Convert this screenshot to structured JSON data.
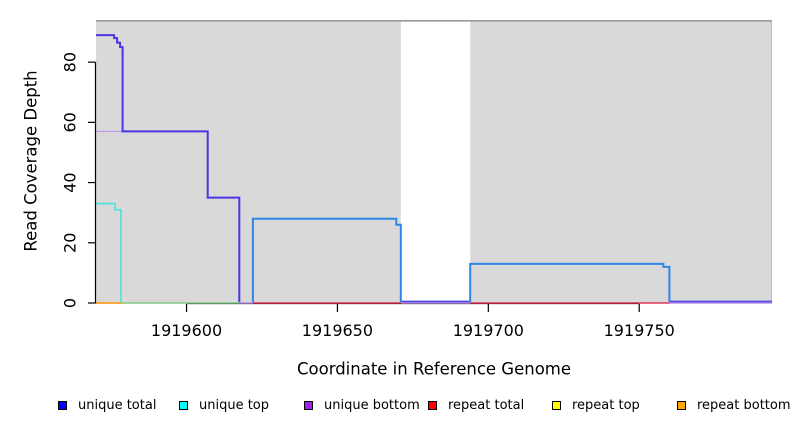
{
  "chart_data": {
    "type": "line",
    "title": "",
    "xlabel": "Coordinate in Reference Genome",
    "ylabel": "Read Coverage Depth",
    "xlim": [
      1919570,
      1919794
    ],
    "ylim": [
      0,
      94
    ],
    "x_ticks": [
      1919600,
      1919650,
      1919700,
      1919750
    ],
    "y_ticks": [
      0,
      20,
      40,
      60,
      80
    ],
    "grid": false,
    "legend_position": "bottom",
    "panel": {
      "fill": "#d9d9d9",
      "top_border_color": "#999999",
      "right_border_color": "#bdbdbd",
      "shaded_x_regions": [
        [
          1919570,
          1919671
        ],
        [
          1919694,
          1919794
        ]
      ],
      "white_gap_x_region": [
        1919671,
        1919694
      ]
    },
    "axis_color": "#000000",
    "series": [
      {
        "name": "zero-overlap-green",
        "color": "#82c982",
        "width": 1.6,
        "points": [
          [
            1919578.8,
            0
          ],
          [
            1919617.5,
            0
          ]
        ]
      },
      {
        "name": "unique-bottom-zero-a",
        "color": "#bb8fe8",
        "width": 1.5,
        "points": [
          [
            1919617.5,
            0
          ],
          [
            1919622,
            0
          ]
        ]
      },
      {
        "name": "unique-bottom-zero-gap",
        "color": "#bb8fe8",
        "width": 1.5,
        "points": [
          [
            1919671,
            0
          ],
          [
            1919694,
            0
          ]
        ]
      },
      {
        "name": "unique-bottom-zero-tail",
        "color": "#bb8fe8",
        "width": 1.5,
        "points": [
          [
            1919760,
            0
          ],
          [
            1919794,
            0
          ]
        ]
      },
      {
        "name": "repeat-bottom-zero",
        "color": "#ff9e1e",
        "width": 1.8,
        "points": [
          [
            1919570,
            0
          ],
          [
            1919578.8,
            0
          ]
        ]
      },
      {
        "name": "repeat-total-zero-a",
        "color": "#dc3355",
        "width": 1.6,
        "points": [
          [
            1919622,
            0
          ],
          [
            1919671,
            0
          ]
        ]
      },
      {
        "name": "repeat-total-zero-b",
        "color": "#dc3355",
        "width": 1.6,
        "points": [
          [
            1919694,
            0
          ],
          [
            1919760,
            0
          ]
        ]
      },
      {
        "name": "unique-bottom-57",
        "color": "#c39ae9",
        "width": 1.4,
        "points": [
          [
            1919570,
            57
          ],
          [
            1919578.8,
            57
          ]
        ]
      },
      {
        "name": "unique-top-steps",
        "color": "#4ce0e0",
        "width": 1.6,
        "points": [
          [
            1919570,
            33
          ],
          [
            1919576.3,
            33
          ],
          [
            1919576.3,
            31
          ],
          [
            1919578.3,
            31
          ],
          [
            1919578.3,
            0
          ]
        ]
      },
      {
        "name": "unique-total-left-block",
        "color": "#4a35e6",
        "width": 2,
        "points": [
          [
            1919570,
            89
          ],
          [
            1919576,
            89
          ],
          [
            1919576,
            88
          ],
          [
            1919577,
            88
          ],
          [
            1919577,
            86.5
          ],
          [
            1919578,
            86.5
          ],
          [
            1919578,
            85
          ],
          [
            1919578.8,
            85
          ],
          [
            1919578.8,
            57
          ],
          [
            1919607,
            57
          ],
          [
            1919607,
            35
          ],
          [
            1919617.5,
            35
          ],
          [
            1919617.5,
            0.3
          ]
        ]
      },
      {
        "name": "unique-total-zero-gap",
        "color": "#5247e0",
        "width": 1.8,
        "points": [
          [
            1919671,
            0.5
          ],
          [
            1919694,
            0.5
          ]
        ]
      },
      {
        "name": "unique-total-zero-tail",
        "color": "#5247e0",
        "width": 1.8,
        "points": [
          [
            1919760,
            0.5
          ],
          [
            1919794,
            0.5
          ]
        ]
      },
      {
        "name": "unique-total-mid-block",
        "color": "#2e86e8",
        "width": 2,
        "points": [
          [
            1919622,
            0.3
          ],
          [
            1919622,
            28
          ],
          [
            1919669.5,
            28
          ],
          [
            1919669.5,
            26
          ],
          [
            1919671,
            26
          ],
          [
            1919671,
            0.3
          ]
        ]
      },
      {
        "name": "unique-total-right-block",
        "color": "#2e86e8",
        "width": 2,
        "points": [
          [
            1919694,
            0.3
          ],
          [
            1919694,
            13
          ],
          [
            1919758,
            13
          ],
          [
            1919758,
            12
          ],
          [
            1919760,
            12
          ],
          [
            1919760,
            0.5
          ]
        ]
      }
    ]
  },
  "legend": {
    "items": [
      {
        "label": "unique total",
        "color": "#0000ff"
      },
      {
        "label": "unique top",
        "color": "#00ffff"
      },
      {
        "label": "unique bottom",
        "color": "#a020f0"
      },
      {
        "label": "repeat total",
        "color": "#ff0000"
      },
      {
        "label": "repeat top",
        "color": "#ffff00"
      },
      {
        "label": "repeat bottom",
        "color": "#ffa500"
      }
    ]
  }
}
